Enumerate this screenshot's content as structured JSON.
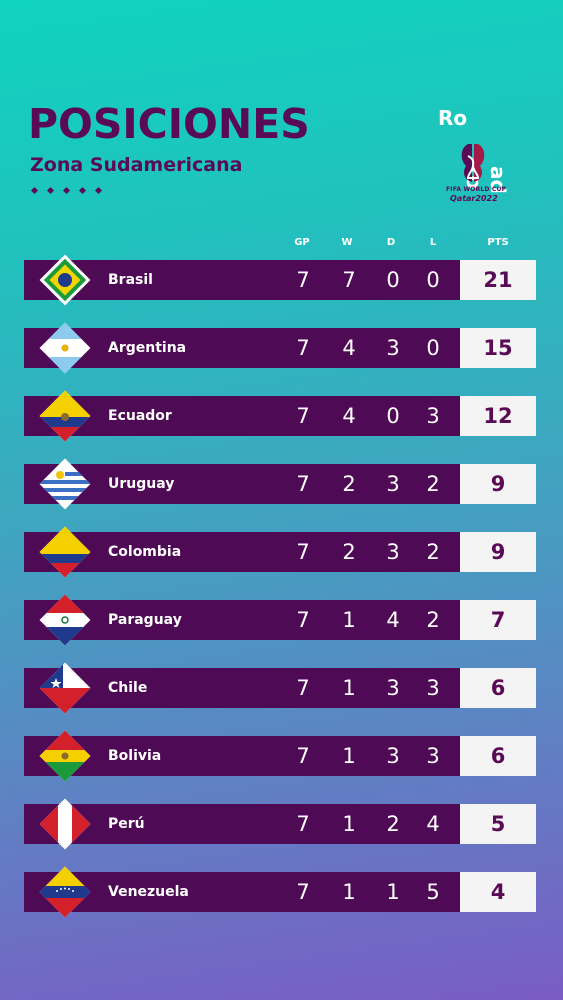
{
  "header": {
    "title": "POSICIONES",
    "subtitle": "Zona Sudamericana"
  },
  "logo": {
    "line1": "Ro",
    "line2": "ad to",
    "line3": "FIFA WORLD CUP",
    "line4": "Qatar2022"
  },
  "columns": [
    "GP",
    "W",
    "D",
    "L",
    "PTS"
  ],
  "colors": {
    "primary": "#5a0b56",
    "row_bg": "#4f0a55",
    "pts_bg": "#f4f4f4",
    "gradient_top": "#10d3be",
    "gradient_bottom": "#7a5cc4"
  },
  "teams": [
    {
      "name": "Brasil",
      "flag": "brazil-flag",
      "gp": "7",
      "w": "7",
      "d": "0",
      "l": "0",
      "pts": "21"
    },
    {
      "name": "Argentina",
      "flag": "argentina-flag",
      "gp": "7",
      "w": "4",
      "d": "3",
      "l": "0",
      "pts": "15"
    },
    {
      "name": "Ecuador",
      "flag": "ecuador-flag",
      "gp": "7",
      "w": "4",
      "d": "0",
      "l": "3",
      "pts": "12"
    },
    {
      "name": "Uruguay",
      "flag": "uruguay-flag",
      "gp": "7",
      "w": "2",
      "d": "3",
      "l": "2",
      "pts": "9"
    },
    {
      "name": "Colombia",
      "flag": "colombia-flag",
      "gp": "7",
      "w": "2",
      "d": "3",
      "l": "2",
      "pts": "9"
    },
    {
      "name": "Paraguay",
      "flag": "paraguay-flag",
      "gp": "7",
      "w": "1",
      "d": "4",
      "l": "2",
      "pts": "7"
    },
    {
      "name": "Chile",
      "flag": "chile-flag",
      "gp": "7",
      "w": "1",
      "d": "3",
      "l": "3",
      "pts": "6"
    },
    {
      "name": "Bolivia",
      "flag": "bolivia-flag",
      "gp": "7",
      "w": "1",
      "d": "3",
      "l": "3",
      "pts": "6"
    },
    {
      "name": "Perú",
      "flag": "peru-flag",
      "gp": "7",
      "w": "1",
      "d": "2",
      "l": "4",
      "pts": "5"
    },
    {
      "name": "Venezuela",
      "flag": "venezuela-flag",
      "gp": "7",
      "w": "1",
      "d": "1",
      "l": "5",
      "pts": "4"
    }
  ]
}
